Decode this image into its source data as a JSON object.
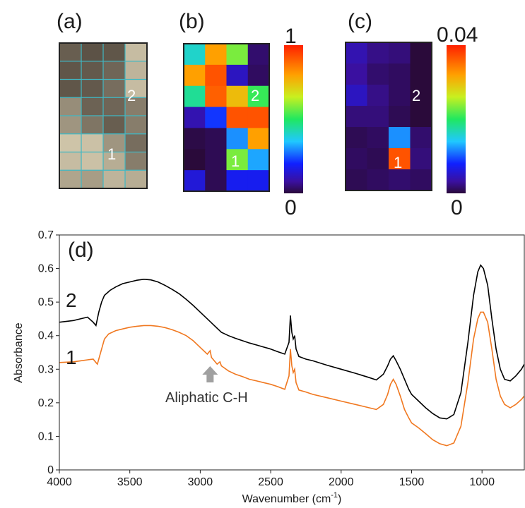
{
  "panels": {
    "a": {
      "label": "(a)",
      "markers": [
        "1",
        "2"
      ],
      "micrograph_blocks": [
        [
          0.25,
          0.18,
          0.2,
          0.85
        ],
        [
          0.2,
          0.22,
          0.3,
          0.8
        ],
        [
          0.2,
          0.22,
          0.35,
          0.85
        ],
        [
          0.55,
          0.28,
          0.3,
          0.45
        ],
        [
          0.6,
          0.4,
          0.25,
          0.45
        ],
        [
          0.9,
          0.88,
          0.6,
          0.35
        ],
        [
          0.85,
          0.88,
          0.75,
          0.45
        ],
        [
          0.7,
          0.65,
          0.8,
          0.75
        ]
      ]
    },
    "b": {
      "label": "(b)",
      "colorbar": {
        "max_label": "1",
        "min_label": "0"
      },
      "markers": [
        "1",
        "2"
      ],
      "grid": [
        [
          0.4,
          0.8,
          0.58,
          0.04
        ],
        [
          0.8,
          0.92,
          0.12,
          0.03
        ],
        [
          0.45,
          0.9,
          0.75,
          0.52
        ],
        [
          0.1,
          0.22,
          0.92,
          0.92
        ],
        [
          0.01,
          0.02,
          0.3,
          0.8
        ],
        [
          0.0,
          0.02,
          0.58,
          0.32
        ],
        [
          0.15,
          0.02,
          0.18,
          0.18
        ]
      ]
    },
    "c": {
      "label": "(c)",
      "colorbar": {
        "max_label": "0.04",
        "min_label": "0"
      },
      "markers": [
        "1",
        "2"
      ],
      "grid": [
        [
          0.1,
          0.06,
          0.05,
          0.0
        ],
        [
          0.08,
          0.04,
          0.03,
          0.0
        ],
        [
          0.12,
          0.06,
          0.03,
          0.0
        ],
        [
          0.05,
          0.05,
          0.02,
          0.0
        ],
        [
          0.02,
          0.03,
          0.3,
          0.04
        ],
        [
          0.03,
          0.02,
          0.92,
          0.05
        ],
        [
          0.02,
          0.03,
          0.04,
          0.03
        ]
      ]
    }
  },
  "colors": {
    "spectrum_1": "#f07820",
    "spectrum_2": "#000000",
    "grid_line": "#3fb8c4",
    "arrow": "#a0a0a0"
  },
  "chart_data": {
    "type": "line",
    "panel_label": "(d)",
    "xlabel": "Wavenumber (cm",
    "xlabel_sup": "-1",
    "xlabel_end": ")",
    "ylabel": "Absorbance",
    "xlim": [
      4000,
      700
    ],
    "ylim": [
      0,
      0.7
    ],
    "x_reversed": true,
    "xticks": [
      4000,
      3500,
      3000,
      2500,
      2000,
      1500,
      1000
    ],
    "xtick_labels": [
      "4000",
      "3500",
      "3000",
      "2500",
      "2000",
      "1500",
      "1000"
    ],
    "yticks": [
      0,
      0.1,
      0.2,
      0.3,
      0.4,
      0.5,
      0.6,
      0.7
    ],
    "ytick_labels": [
      "0",
      "0.1",
      "0.2",
      "0.3",
      "0.4",
      "0.5",
      "0.6",
      "0.7"
    ],
    "annotation": {
      "text": "Aliphatic C-H",
      "x": 2930
    },
    "series": [
      {
        "name": "2",
        "points": [
          [
            4000,
            0.44
          ],
          [
            3900,
            0.445
          ],
          [
            3850,
            0.45
          ],
          [
            3800,
            0.455
          ],
          [
            3760,
            0.44
          ],
          [
            3740,
            0.43
          ],
          [
            3720,
            0.47
          ],
          [
            3700,
            0.5
          ],
          [
            3680,
            0.52
          ],
          [
            3640,
            0.535
          ],
          [
            3600,
            0.545
          ],
          [
            3550,
            0.555
          ],
          [
            3500,
            0.56
          ],
          [
            3450,
            0.565
          ],
          [
            3400,
            0.568
          ],
          [
            3350,
            0.566
          ],
          [
            3300,
            0.56
          ],
          [
            3250,
            0.55
          ],
          [
            3200,
            0.538
          ],
          [
            3150,
            0.525
          ],
          [
            3100,
            0.508
          ],
          [
            3050,
            0.49
          ],
          [
            3000,
            0.47
          ],
          [
            2950,
            0.45
          ],
          [
            2900,
            0.43
          ],
          [
            2850,
            0.41
          ],
          [
            2800,
            0.4
          ],
          [
            2750,
            0.392
          ],
          [
            2700,
            0.385
          ],
          [
            2650,
            0.378
          ],
          [
            2600,
            0.372
          ],
          [
            2550,
            0.366
          ],
          [
            2500,
            0.36
          ],
          [
            2450,
            0.352
          ],
          [
            2400,
            0.345
          ],
          [
            2370,
            0.38
          ],
          [
            2360,
            0.46
          ],
          [
            2350,
            0.41
          ],
          [
            2340,
            0.39
          ],
          [
            2330,
            0.4
          ],
          [
            2320,
            0.36
          ],
          [
            2300,
            0.338
          ],
          [
            2250,
            0.33
          ],
          [
            2200,
            0.325
          ],
          [
            2100,
            0.312
          ],
          [
            2000,
            0.3
          ],
          [
            1900,
            0.288
          ],
          [
            1800,
            0.275
          ],
          [
            1750,
            0.268
          ],
          [
            1700,
            0.285
          ],
          [
            1670,
            0.31
          ],
          [
            1650,
            0.33
          ],
          [
            1630,
            0.34
          ],
          [
            1610,
            0.325
          ],
          [
            1580,
            0.3
          ],
          [
            1550,
            0.27
          ],
          [
            1520,
            0.24
          ],
          [
            1500,
            0.225
          ],
          [
            1450,
            0.205
          ],
          [
            1400,
            0.185
          ],
          [
            1350,
            0.168
          ],
          [
            1300,
            0.155
          ],
          [
            1250,
            0.152
          ],
          [
            1200,
            0.165
          ],
          [
            1150,
            0.23
          ],
          [
            1100,
            0.38
          ],
          [
            1060,
            0.52
          ],
          [
            1030,
            0.59
          ],
          [
            1010,
            0.61
          ],
          [
            990,
            0.6
          ],
          [
            960,
            0.55
          ],
          [
            930,
            0.45
          ],
          [
            900,
            0.36
          ],
          [
            870,
            0.3
          ],
          [
            840,
            0.27
          ],
          [
            800,
            0.265
          ],
          [
            760,
            0.28
          ],
          [
            720,
            0.3
          ],
          [
            700,
            0.315
          ]
        ]
      },
      {
        "name": "1",
        "points": [
          [
            4000,
            0.32
          ],
          [
            3900,
            0.322
          ],
          [
            3850,
            0.325
          ],
          [
            3800,
            0.328
          ],
          [
            3760,
            0.33
          ],
          [
            3740,
            0.32
          ],
          [
            3730,
            0.315
          ],
          [
            3720,
            0.33
          ],
          [
            3700,
            0.36
          ],
          [
            3680,
            0.39
          ],
          [
            3650,
            0.405
          ],
          [
            3600,
            0.415
          ],
          [
            3550,
            0.42
          ],
          [
            3500,
            0.425
          ],
          [
            3450,
            0.428
          ],
          [
            3400,
            0.43
          ],
          [
            3350,
            0.43
          ],
          [
            3300,
            0.428
          ],
          [
            3250,
            0.424
          ],
          [
            3200,
            0.418
          ],
          [
            3150,
            0.41
          ],
          [
            3100,
            0.4
          ],
          [
            3050,
            0.385
          ],
          [
            3000,
            0.365
          ],
          [
            2950,
            0.345
          ],
          [
            2930,
            0.355
          ],
          [
            2920,
            0.335
          ],
          [
            2900,
            0.325
          ],
          [
            2880,
            0.315
          ],
          [
            2860,
            0.322
          ],
          [
            2850,
            0.31
          ],
          [
            2800,
            0.295
          ],
          [
            2750,
            0.285
          ],
          [
            2700,
            0.278
          ],
          [
            2650,
            0.27
          ],
          [
            2600,
            0.265
          ],
          [
            2550,
            0.26
          ],
          [
            2500,
            0.255
          ],
          [
            2450,
            0.248
          ],
          [
            2400,
            0.24
          ],
          [
            2370,
            0.28
          ],
          [
            2360,
            0.36
          ],
          [
            2350,
            0.31
          ],
          [
            2340,
            0.29
          ],
          [
            2330,
            0.3
          ],
          [
            2320,
            0.26
          ],
          [
            2300,
            0.238
          ],
          [
            2250,
            0.232
          ],
          [
            2200,
            0.225
          ],
          [
            2100,
            0.215
          ],
          [
            2000,
            0.205
          ],
          [
            1900,
            0.195
          ],
          [
            1800,
            0.185
          ],
          [
            1750,
            0.18
          ],
          [
            1700,
            0.195
          ],
          [
            1670,
            0.225
          ],
          [
            1650,
            0.255
          ],
          [
            1630,
            0.27
          ],
          [
            1610,
            0.255
          ],
          [
            1580,
            0.22
          ],
          [
            1550,
            0.18
          ],
          [
            1520,
            0.155
          ],
          [
            1500,
            0.14
          ],
          [
            1450,
            0.125
          ],
          [
            1400,
            0.108
          ],
          [
            1350,
            0.09
          ],
          [
            1300,
            0.078
          ],
          [
            1250,
            0.072
          ],
          [
            1200,
            0.08
          ],
          [
            1150,
            0.13
          ],
          [
            1100,
            0.26
          ],
          [
            1060,
            0.39
          ],
          [
            1030,
            0.45
          ],
          [
            1010,
            0.47
          ],
          [
            990,
            0.47
          ],
          [
            960,
            0.44
          ],
          [
            930,
            0.36
          ],
          [
            900,
            0.27
          ],
          [
            870,
            0.22
          ],
          [
            840,
            0.195
          ],
          [
            800,
            0.185
          ],
          [
            760,
            0.195
          ],
          [
            720,
            0.21
          ],
          [
            700,
            0.22
          ]
        ]
      }
    ]
  }
}
